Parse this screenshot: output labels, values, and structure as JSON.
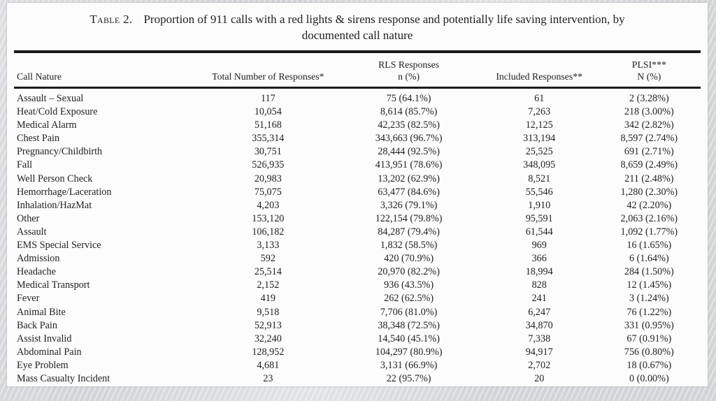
{
  "slide": {
    "background_color": "#d6d8db",
    "panel_color": "#fcfcfd",
    "rule_color": "#1b1b1b",
    "text_color": "#1f1f1f"
  },
  "table": {
    "title": {
      "label": "Table 2.",
      "line1": "Proportion of 911 calls with a red lights & sirens response and potentially life saving intervention, by",
      "line2": "documented call nature"
    },
    "columns": [
      {
        "id": "cell-call-nature",
        "lines": [
          "Call Nature"
        ]
      },
      {
        "id": "cell-total-responses",
        "lines": [
          "Total Number of Responses*"
        ]
      },
      {
        "id": "cell-rls-responses",
        "lines": [
          "RLS Responses",
          "n (%)"
        ]
      },
      {
        "id": "cell-included-responses",
        "lines": [
          "Included Responses**"
        ]
      },
      {
        "id": "cell-plsi",
        "lines": [
          "PLSI***",
          "N (%)"
        ]
      }
    ],
    "rows": [
      [
        "Assault – Sexual",
        "117",
        "75 (64.1%)",
        "61",
        "2 (3.28%)"
      ],
      [
        "Heat/Cold Exposure",
        "10,054",
        "8,614 (85.7%)",
        "7,263",
        "218 (3.00%)"
      ],
      [
        "Medical Alarm",
        "51,168",
        "42,235 (82.5%)",
        "12,125",
        "342 (2.82%)"
      ],
      [
        "Chest Pain",
        "355,314",
        "343,663 (96.7%)",
        "313,194",
        "8,597 (2.74%)"
      ],
      [
        "Pregnancy/Childbirth",
        "30,751",
        "28,444 (92.5%)",
        "25,525",
        "691 (2.71%)"
      ],
      [
        "Fall",
        "526,935",
        "413,951 (78.6%)",
        "348,095",
        "8,659 (2.49%)"
      ],
      [
        "Well Person Check",
        "20,983",
        "13,202 (62.9%)",
        "8,521",
        "211 (2.48%)"
      ],
      [
        "Hemorrhage/Laceration",
        "75,075",
        "63,477 (84.6%)",
        "55,546",
        "1,280 (2.30%)"
      ],
      [
        "Inhalation/HazMat",
        "4,203",
        "3,326 (79.1%)",
        "1,910",
        "42 (2.20%)"
      ],
      [
        "Other",
        "153,120",
        "122,154 (79.8%)",
        "95,591",
        "2,063 (2.16%)"
      ],
      [
        "Assault",
        "106,182",
        "84,287 (79.4%)",
        "61,544",
        "1,092 (1.77%)"
      ],
      [
        "EMS Special Service",
        "3,133",
        "1,832 (58.5%)",
        "969",
        "16 (1.65%)"
      ],
      [
        "Admission",
        "592",
        "420 (70.9%)",
        "366",
        "6 (1.64%)"
      ],
      [
        "Headache",
        "25,514",
        "20,970 (82.2%)",
        "18,994",
        "284 (1.50%)"
      ],
      [
        "Medical Transport",
        "2,152",
        "936 (43.5%)",
        "828",
        "12 (1.45%)"
      ],
      [
        "Fever",
        "419",
        "262 (62.5%)",
        "241",
        "3 (1.24%)"
      ],
      [
        "Animal Bite",
        "9,518",
        "7,706 (81.0%)",
        "6,247",
        "76 (1.22%)"
      ],
      [
        "Back Pain",
        "52,913",
        "38,348 (72.5%)",
        "34,870",
        "331 (0.95%)"
      ],
      [
        "Assist Invalid",
        "32,240",
        "14,540 (45.1%)",
        "7,338",
        "67 (0.91%)"
      ],
      [
        "Abdominal Pain",
        "128,952",
        "104,297 (80.9%)",
        "94,917",
        "756 (0.80%)"
      ],
      [
        "Eye Problem",
        "4,681",
        "3,131 (66.9%)",
        "2,702",
        "18 (0.67%)"
      ],
      [
        "Mass Casualty Incident",
        "23",
        "22 (95.7%)",
        "20",
        "0 (0.00%)"
      ]
    ]
  }
}
